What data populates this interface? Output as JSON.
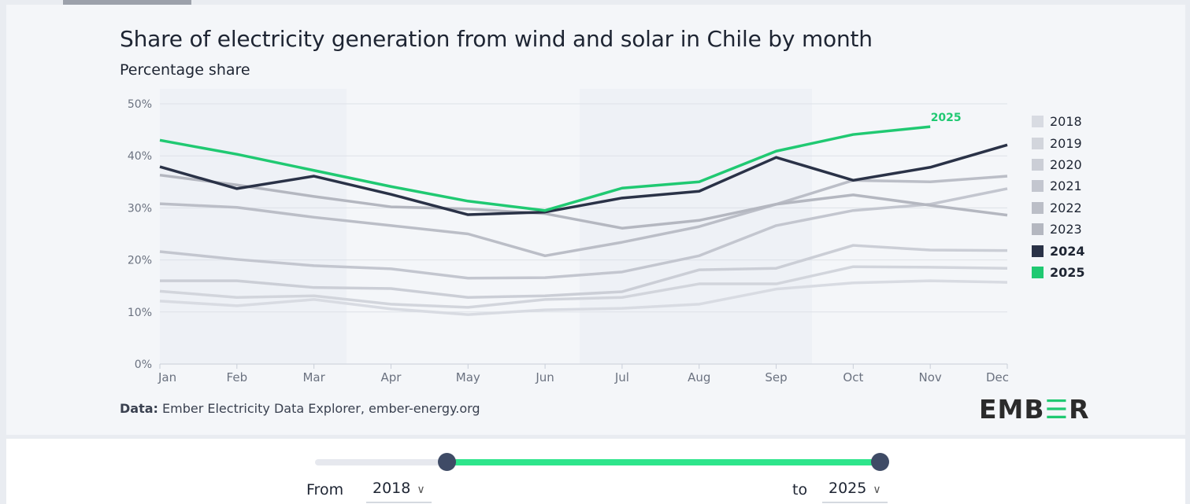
{
  "title": "Share of electricity generation from wind and solar in Chile by month",
  "subtitle": "Percentage share",
  "source_label": "Data:",
  "source_text": "Ember Electricity Data Explorer, ember-energy.org",
  "logo": "EMBER",
  "controls": {
    "from_label": "From",
    "from_value": "2018",
    "to_label": "to",
    "to_value": "2025"
  },
  "colors": {
    "accent": "#20c972",
    "highlight_2024": "#2a3247"
  },
  "chart_data": {
    "type": "line",
    "title": "Share of electricity generation from wind and solar in Chile by month",
    "ylabel": "Percentage share",
    "categories": [
      "Jan",
      "Feb",
      "Mar",
      "Apr",
      "May",
      "Jun",
      "Jul",
      "Aug",
      "Sep",
      "Oct",
      "Nov",
      "Dec"
    ],
    "ylim": [
      0,
      50
    ],
    "yticks": [
      "0%",
      "10%",
      "20%",
      "30%",
      "40%",
      "50%"
    ],
    "grid": true,
    "legend": "right",
    "end_label": "2025",
    "series": [
      {
        "name": "2018",
        "color": "#d8dbe2",
        "values": [
          12.1,
          11.2,
          12.4,
          10.6,
          9.5,
          10.4,
          10.7,
          11.5,
          14.4,
          15.6,
          16.0,
          15.7
        ]
      },
      {
        "name": "2019",
        "color": "#d2d5dc",
        "values": [
          14.0,
          12.8,
          13.1,
          11.5,
          10.9,
          12.4,
          12.8,
          15.4,
          15.4,
          18.7,
          18.6,
          18.4
        ]
      },
      {
        "name": "2020",
        "color": "#cbced6",
        "values": [
          16.0,
          16.0,
          14.7,
          14.5,
          12.8,
          13.1,
          13.9,
          18.1,
          18.4,
          22.8,
          21.9,
          21.8
        ]
      },
      {
        "name": "2021",
        "color": "#c3c6cf",
        "values": [
          21.6,
          20.1,
          18.9,
          18.3,
          16.5,
          16.6,
          17.7,
          20.8,
          26.6,
          29.5,
          30.7,
          33.7
        ]
      },
      {
        "name": "2022",
        "color": "#bbbec7",
        "values": [
          30.8,
          30.1,
          28.2,
          26.6,
          25.0,
          20.8,
          23.4,
          26.4,
          30.7,
          35.3,
          35.0,
          36.1
        ]
      },
      {
        "name": "2023",
        "color": "#b4b7c0",
        "values": [
          36.3,
          34.4,
          32.2,
          30.2,
          29.8,
          28.9,
          26.1,
          27.6,
          30.7,
          32.5,
          30.5,
          28.6
        ]
      },
      {
        "name": "2024",
        "color": "#2a3247",
        "values": [
          37.9,
          33.7,
          36.1,
          32.6,
          28.7,
          29.2,
          31.9,
          33.2,
          39.7,
          35.3,
          37.8,
          42.1
        ]
      },
      {
        "name": "2025",
        "color": "#20c972",
        "values": [
          43.0,
          40.3,
          37.2,
          34.1,
          31.3,
          29.5,
          33.8,
          35.0,
          40.9,
          44.1,
          45.6,
          null
        ]
      }
    ]
  }
}
